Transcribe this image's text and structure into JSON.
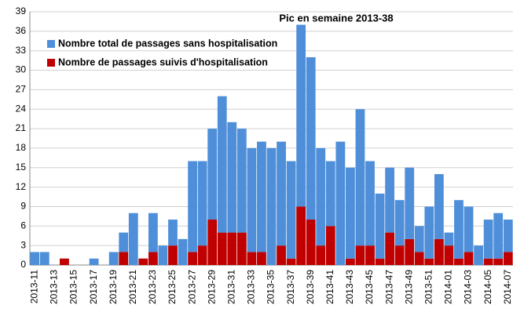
{
  "chart_data": {
    "type": "stacked_bar",
    "annotation": "Pic en semaine 2013-38",
    "categories": [
      "2013-11",
      null,
      "2013-13",
      null,
      "2013-15",
      null,
      "2013-17",
      null,
      "2013-19",
      null,
      "2013-21",
      null,
      "2013-23",
      null,
      "2013-25",
      null,
      "2013-27",
      null,
      "2013-29",
      null,
      "2013-31",
      null,
      "2013-33",
      null,
      "2013-35",
      null,
      "2013-37",
      null,
      "2013-39",
      null,
      "2013-41",
      null,
      "2013-43",
      null,
      "2013-45",
      null,
      "2013-47",
      null,
      "2013-49",
      null,
      "2013-51",
      null,
      "2014-01",
      null,
      "2014-03",
      null,
      "2014-05",
      null,
      "2014-07"
    ],
    "series": [
      {
        "name": "Nombre total de passages sans hospitalisation",
        "color": "#4f8fd9",
        "values": [
          2,
          2,
          0,
          0,
          0,
          0,
          1,
          0,
          2,
          3,
          8,
          0,
          6,
          3,
          4,
          4,
          14,
          13,
          14,
          21,
          17,
          16,
          16,
          17,
          18,
          16,
          15,
          28,
          25,
          15,
          10,
          19,
          14,
          21,
          13,
          10,
          10,
          7,
          11,
          4,
          8,
          10,
          2,
          9,
          7,
          3,
          6,
          7,
          5
        ]
      },
      {
        "name": "Nombre de passages suivis d'hospitalisation",
        "color": "#c00000",
        "values": [
          0,
          0,
          0,
          1,
          0,
          0,
          0,
          0,
          0,
          2,
          0,
          1,
          2,
          0,
          3,
          0,
          2,
          3,
          7,
          5,
          5,
          5,
          2,
          2,
          0,
          3,
          1,
          9,
          7,
          3,
          6,
          0,
          1,
          3,
          3,
          1,
          5,
          3,
          4,
          2,
          1,
          4,
          3,
          1,
          2,
          0,
          1,
          1,
          2
        ]
      }
    ],
    "ylim": [
      0,
      39
    ],
    "yticks": [
      0,
      3,
      6,
      9,
      12,
      15,
      18,
      21,
      24,
      27,
      30,
      33,
      36,
      39
    ],
    "grid": true
  }
}
